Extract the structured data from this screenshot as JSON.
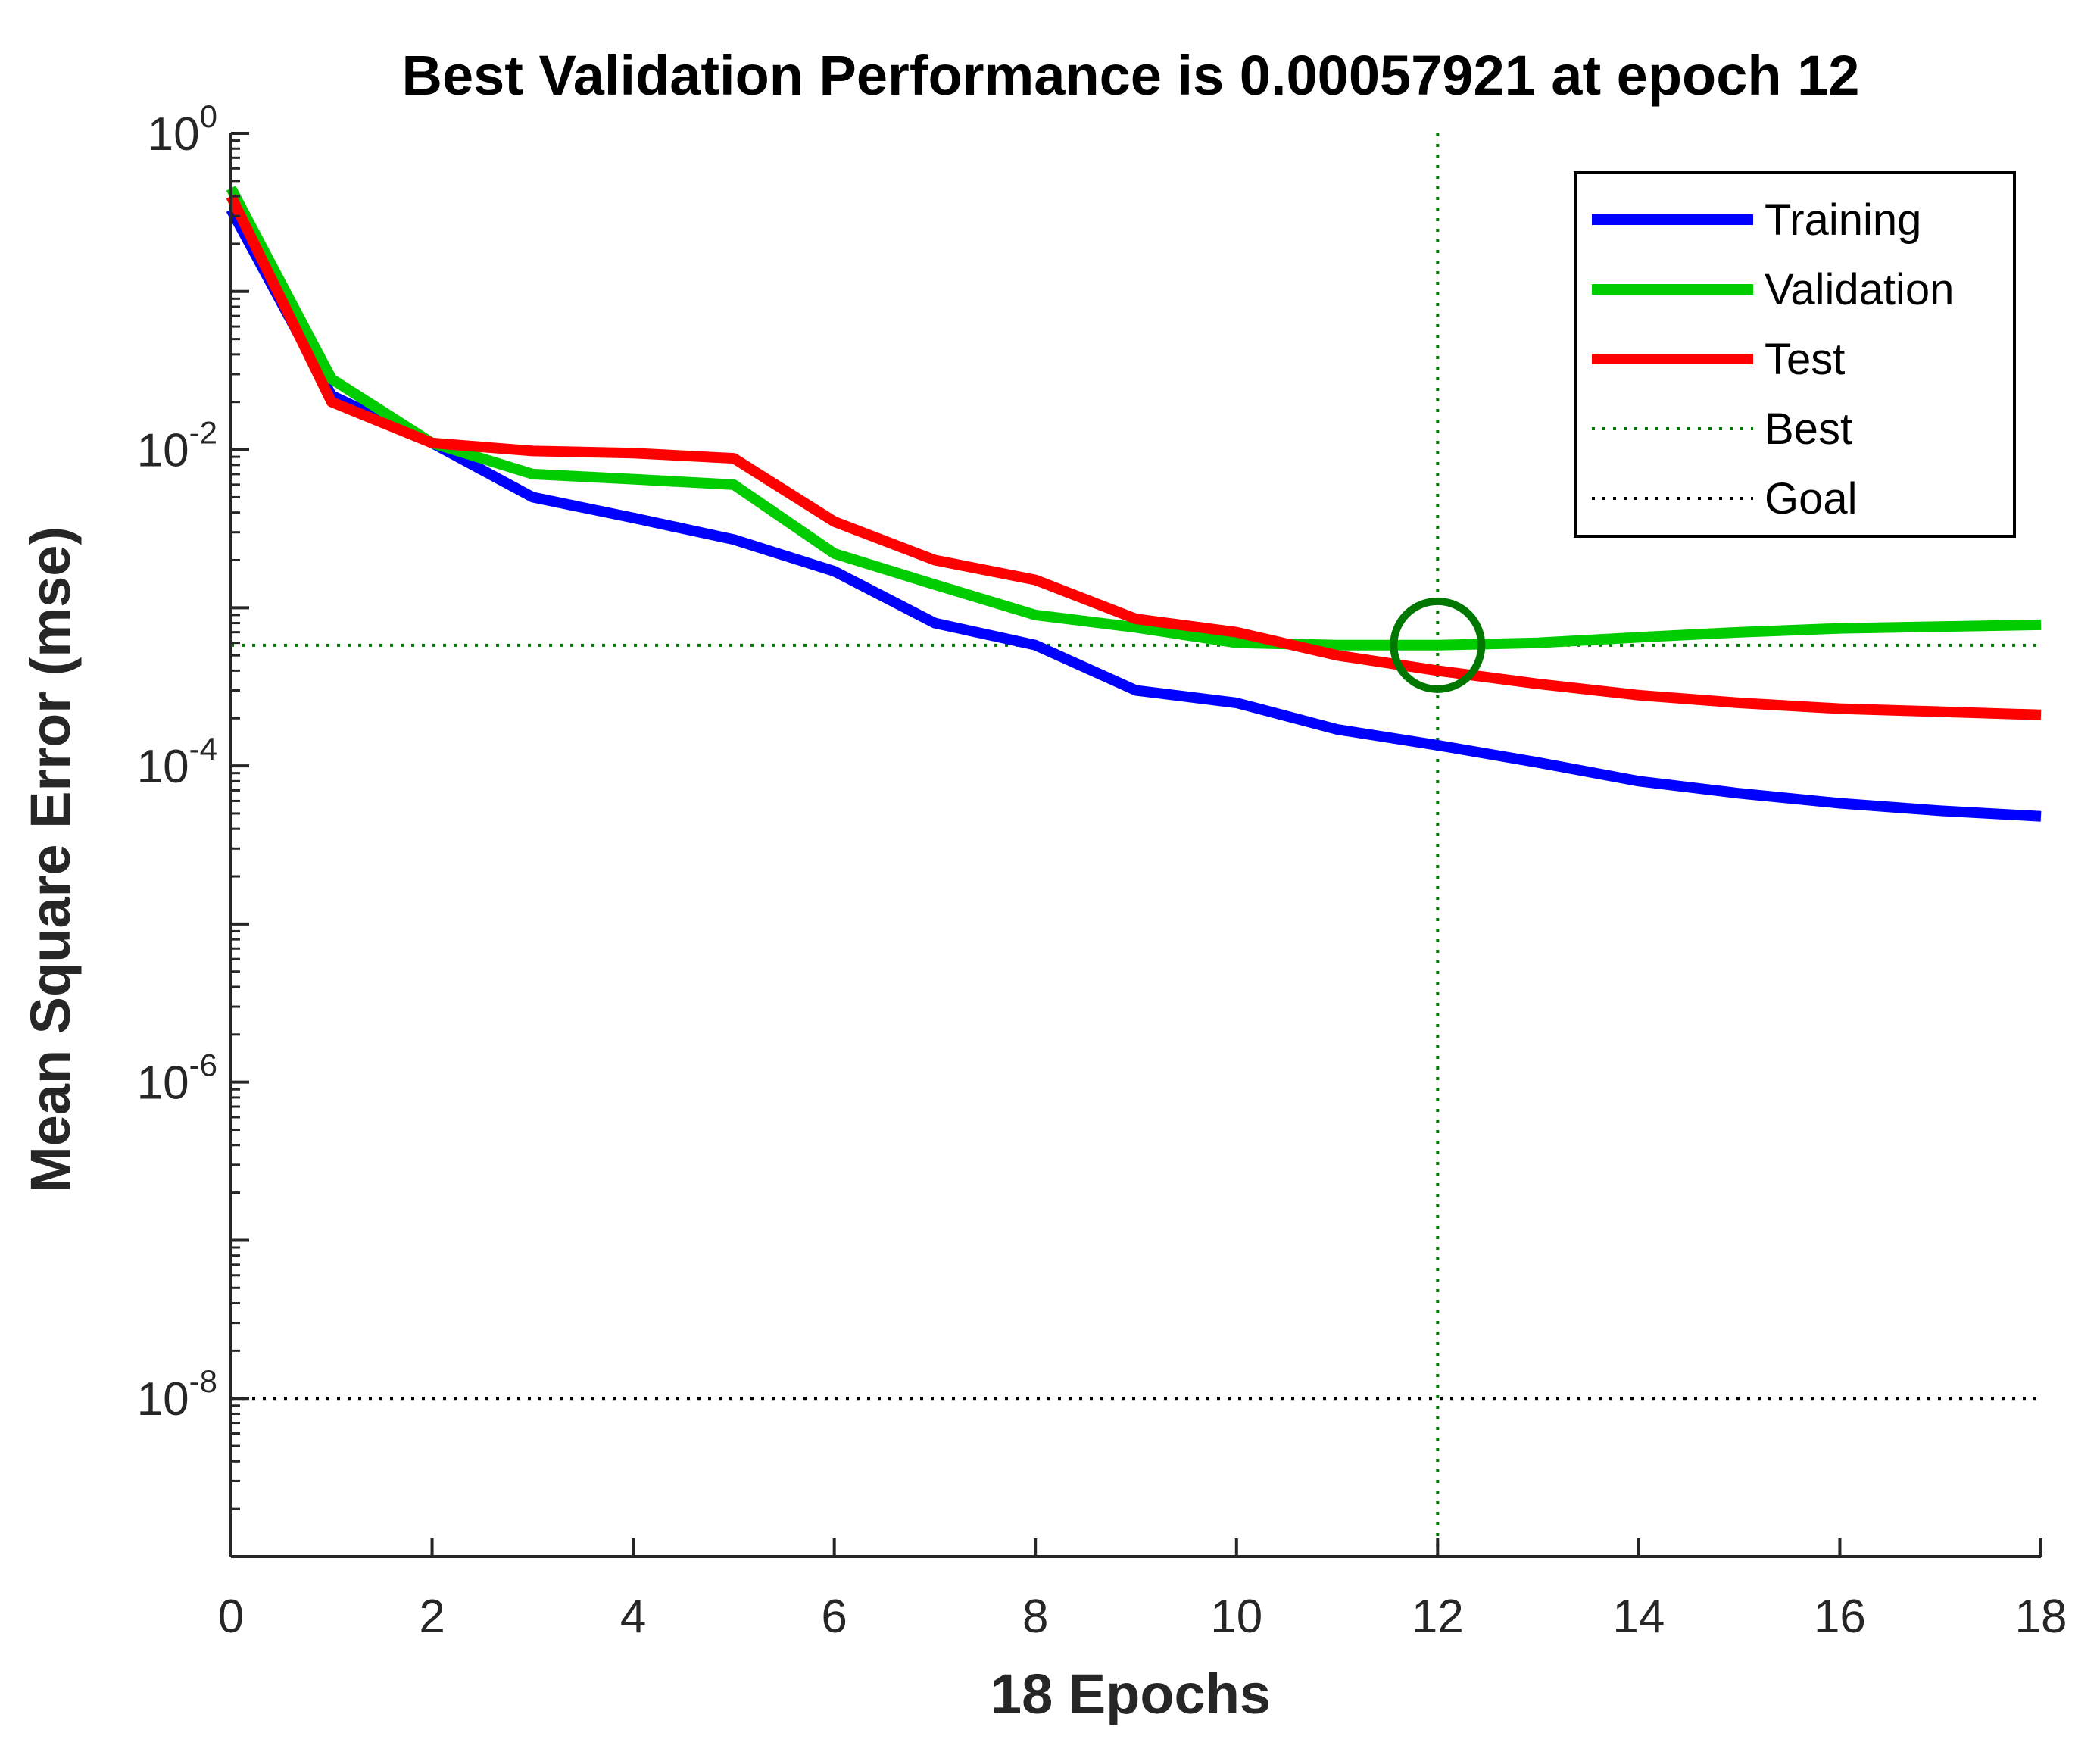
{
  "chart_data": {
    "type": "line",
    "title": "Best Validation Performance is 0.00057921 at epoch 12",
    "xlabel": "18 Epochs",
    "ylabel": "Mean Square Error (mse)",
    "yscale": "log",
    "xlim": [
      0,
      18
    ],
    "ylim_exp": [
      -9,
      0
    ],
    "x_ticks": [
      "0",
      "2",
      "4",
      "6",
      "8",
      "10",
      "12",
      "14",
      "16",
      "18"
    ],
    "y_ticks": [
      {
        "base": "10",
        "exp": "0",
        "value": 1
      },
      {
        "base": "10",
        "exp": "-2",
        "value": 0.01
      },
      {
        "base": "10",
        "exp": "-4",
        "value": 0.0001
      },
      {
        "base": "10",
        "exp": "-6",
        "value": 1e-06
      },
      {
        "base": "10",
        "exp": "-8",
        "value": 1e-08
      }
    ],
    "x": [
      0,
      1,
      2,
      3,
      4,
      5,
      6,
      7,
      8,
      9,
      10,
      11,
      12,
      13,
      14,
      15,
      16,
      17,
      18
    ],
    "series": [
      {
        "name": "Training",
        "color": "#0000ff",
        "values": [
          0.33,
          0.022,
          0.011,
          0.005,
          0.0037,
          0.0027,
          0.0017,
          0.0008,
          0.00058,
          0.0003,
          0.00025,
          0.00017,
          0.000135,
          0.000105,
          8e-05,
          6.7e-05,
          5.8e-05,
          5.2e-05,
          4.8e-05
        ]
      },
      {
        "name": "Validation",
        "color": "#00cc00",
        "values": [
          0.45,
          0.028,
          0.011,
          0.007,
          0.0065,
          0.006,
          0.0022,
          0.0014,
          0.0009,
          0.00075,
          0.0006,
          0.00058,
          0.00057921,
          0.0006,
          0.00065,
          0.0007,
          0.00074,
          0.00076,
          0.00078
        ]
      },
      {
        "name": "Test",
        "color": "#ff0000",
        "values": [
          0.4,
          0.02,
          0.011,
          0.0098,
          0.0095,
          0.0088,
          0.0035,
          0.002,
          0.0015,
          0.00085,
          0.0007,
          0.0005,
          0.0004,
          0.00033,
          0.00028,
          0.00025,
          0.00023,
          0.00022,
          0.00021
        ]
      }
    ],
    "best": {
      "name": "Best",
      "epoch": 12,
      "value": 0.00057921,
      "color": "#007700"
    },
    "goal": {
      "name": "Goal",
      "value": 1e-08,
      "color": "#000000"
    },
    "legend": {
      "position": "top-right",
      "entries": [
        "Training",
        "Validation",
        "Test",
        "Best",
        "Goal"
      ]
    }
  }
}
